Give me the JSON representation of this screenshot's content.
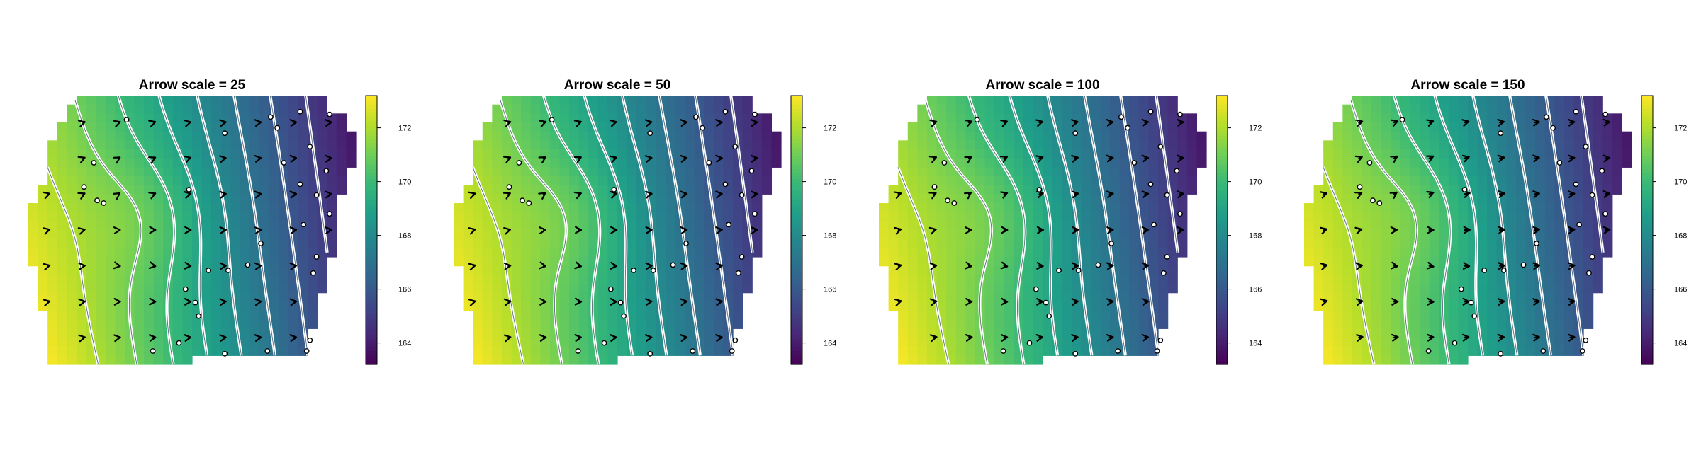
{
  "chart_data": [
    {
      "type": "heatmap",
      "title": "Arrow scale = 25",
      "arrow_scale": 25,
      "colorbar": {
        "ticks": [
          164,
          166,
          168,
          170,
          172
        ],
        "range": [
          163.2,
          173.2
        ],
        "colormap": "viridis"
      },
      "contour_levels": [
        165,
        166,
        167,
        168,
        169,
        170,
        171,
        172
      ]
    },
    {
      "type": "heatmap",
      "title": "Arrow scale = 50",
      "arrow_scale": 50,
      "colorbar": {
        "ticks": [
          164,
          166,
          168,
          170,
          172
        ],
        "range": [
          163.2,
          173.2
        ],
        "colormap": "viridis"
      },
      "contour_levels": [
        165,
        166,
        167,
        168,
        169,
        170,
        171,
        172
      ]
    },
    {
      "type": "heatmap",
      "title": "Arrow scale = 100",
      "arrow_scale": 100,
      "colorbar": {
        "ticks": [
          164,
          166,
          168,
          170,
          172
        ],
        "range": [
          163.2,
          173.2
        ],
        "colormap": "viridis"
      },
      "contour_levels": [
        165,
        166,
        167,
        168,
        169,
        170,
        171,
        172
      ]
    },
    {
      "type": "heatmap",
      "title": "Arrow scale = 150",
      "arrow_scale": 150,
      "colorbar": {
        "ticks": [
          164,
          166,
          168,
          170,
          172
        ],
        "range": [
          163.2,
          173.2
        ],
        "colormap": "viridis"
      },
      "contour_levels": [
        165,
        166,
        167,
        168,
        169,
        170,
        171,
        172
      ]
    }
  ],
  "colors": {
    "viridis": [
      "#440154",
      "#482878",
      "#3e4989",
      "#31688e",
      "#26828e",
      "#1f9e89",
      "#35b779",
      "#6ece58",
      "#b5de2b",
      "#fde725"
    ],
    "contour": "#ffffff",
    "arrow": "#000000",
    "point_fill": "#ffffff"
  }
}
